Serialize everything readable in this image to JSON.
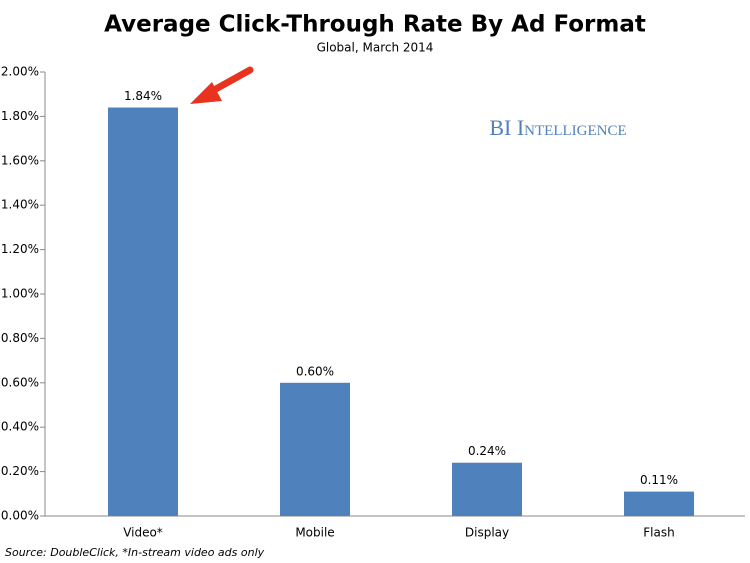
{
  "chart_data": {
    "type": "bar",
    "title": "Average Click-Through Rate By Ad Format",
    "subtitle": "Global, March 2014",
    "source": "Source: DoubleClick, *In-stream video ads only",
    "watermark": "BI Intelligence",
    "categories": [
      "Video*",
      "Mobile",
      "Display",
      "Flash"
    ],
    "values": [
      1.84,
      0.6,
      0.24,
      0.11
    ],
    "value_labels": [
      "1.84%",
      "0.60%",
      "0.24%",
      "0.11%"
    ],
    "color": "#4f81bd",
    "ylim": [
      0,
      2
    ],
    "yticks": [
      {
        "value": 0,
        "label": "0.00%"
      },
      {
        "value": 0.2,
        "label": "0.20%"
      },
      {
        "value": 0.4,
        "label": "0.40%"
      },
      {
        "value": 0.6,
        "label": "0.60%"
      },
      {
        "value": 0.8,
        "label": "0.80%"
      },
      {
        "value": 1.0,
        "label": "1.00%"
      },
      {
        "value": 1.2,
        "label": "1.20%"
      },
      {
        "value": 1.4,
        "label": "1.40%"
      },
      {
        "value": 1.6,
        "label": "1.60%"
      },
      {
        "value": 1.8,
        "label": "1.80%"
      },
      {
        "value": 2.0,
        "label": "2.00%"
      }
    ],
    "grid": false
  }
}
